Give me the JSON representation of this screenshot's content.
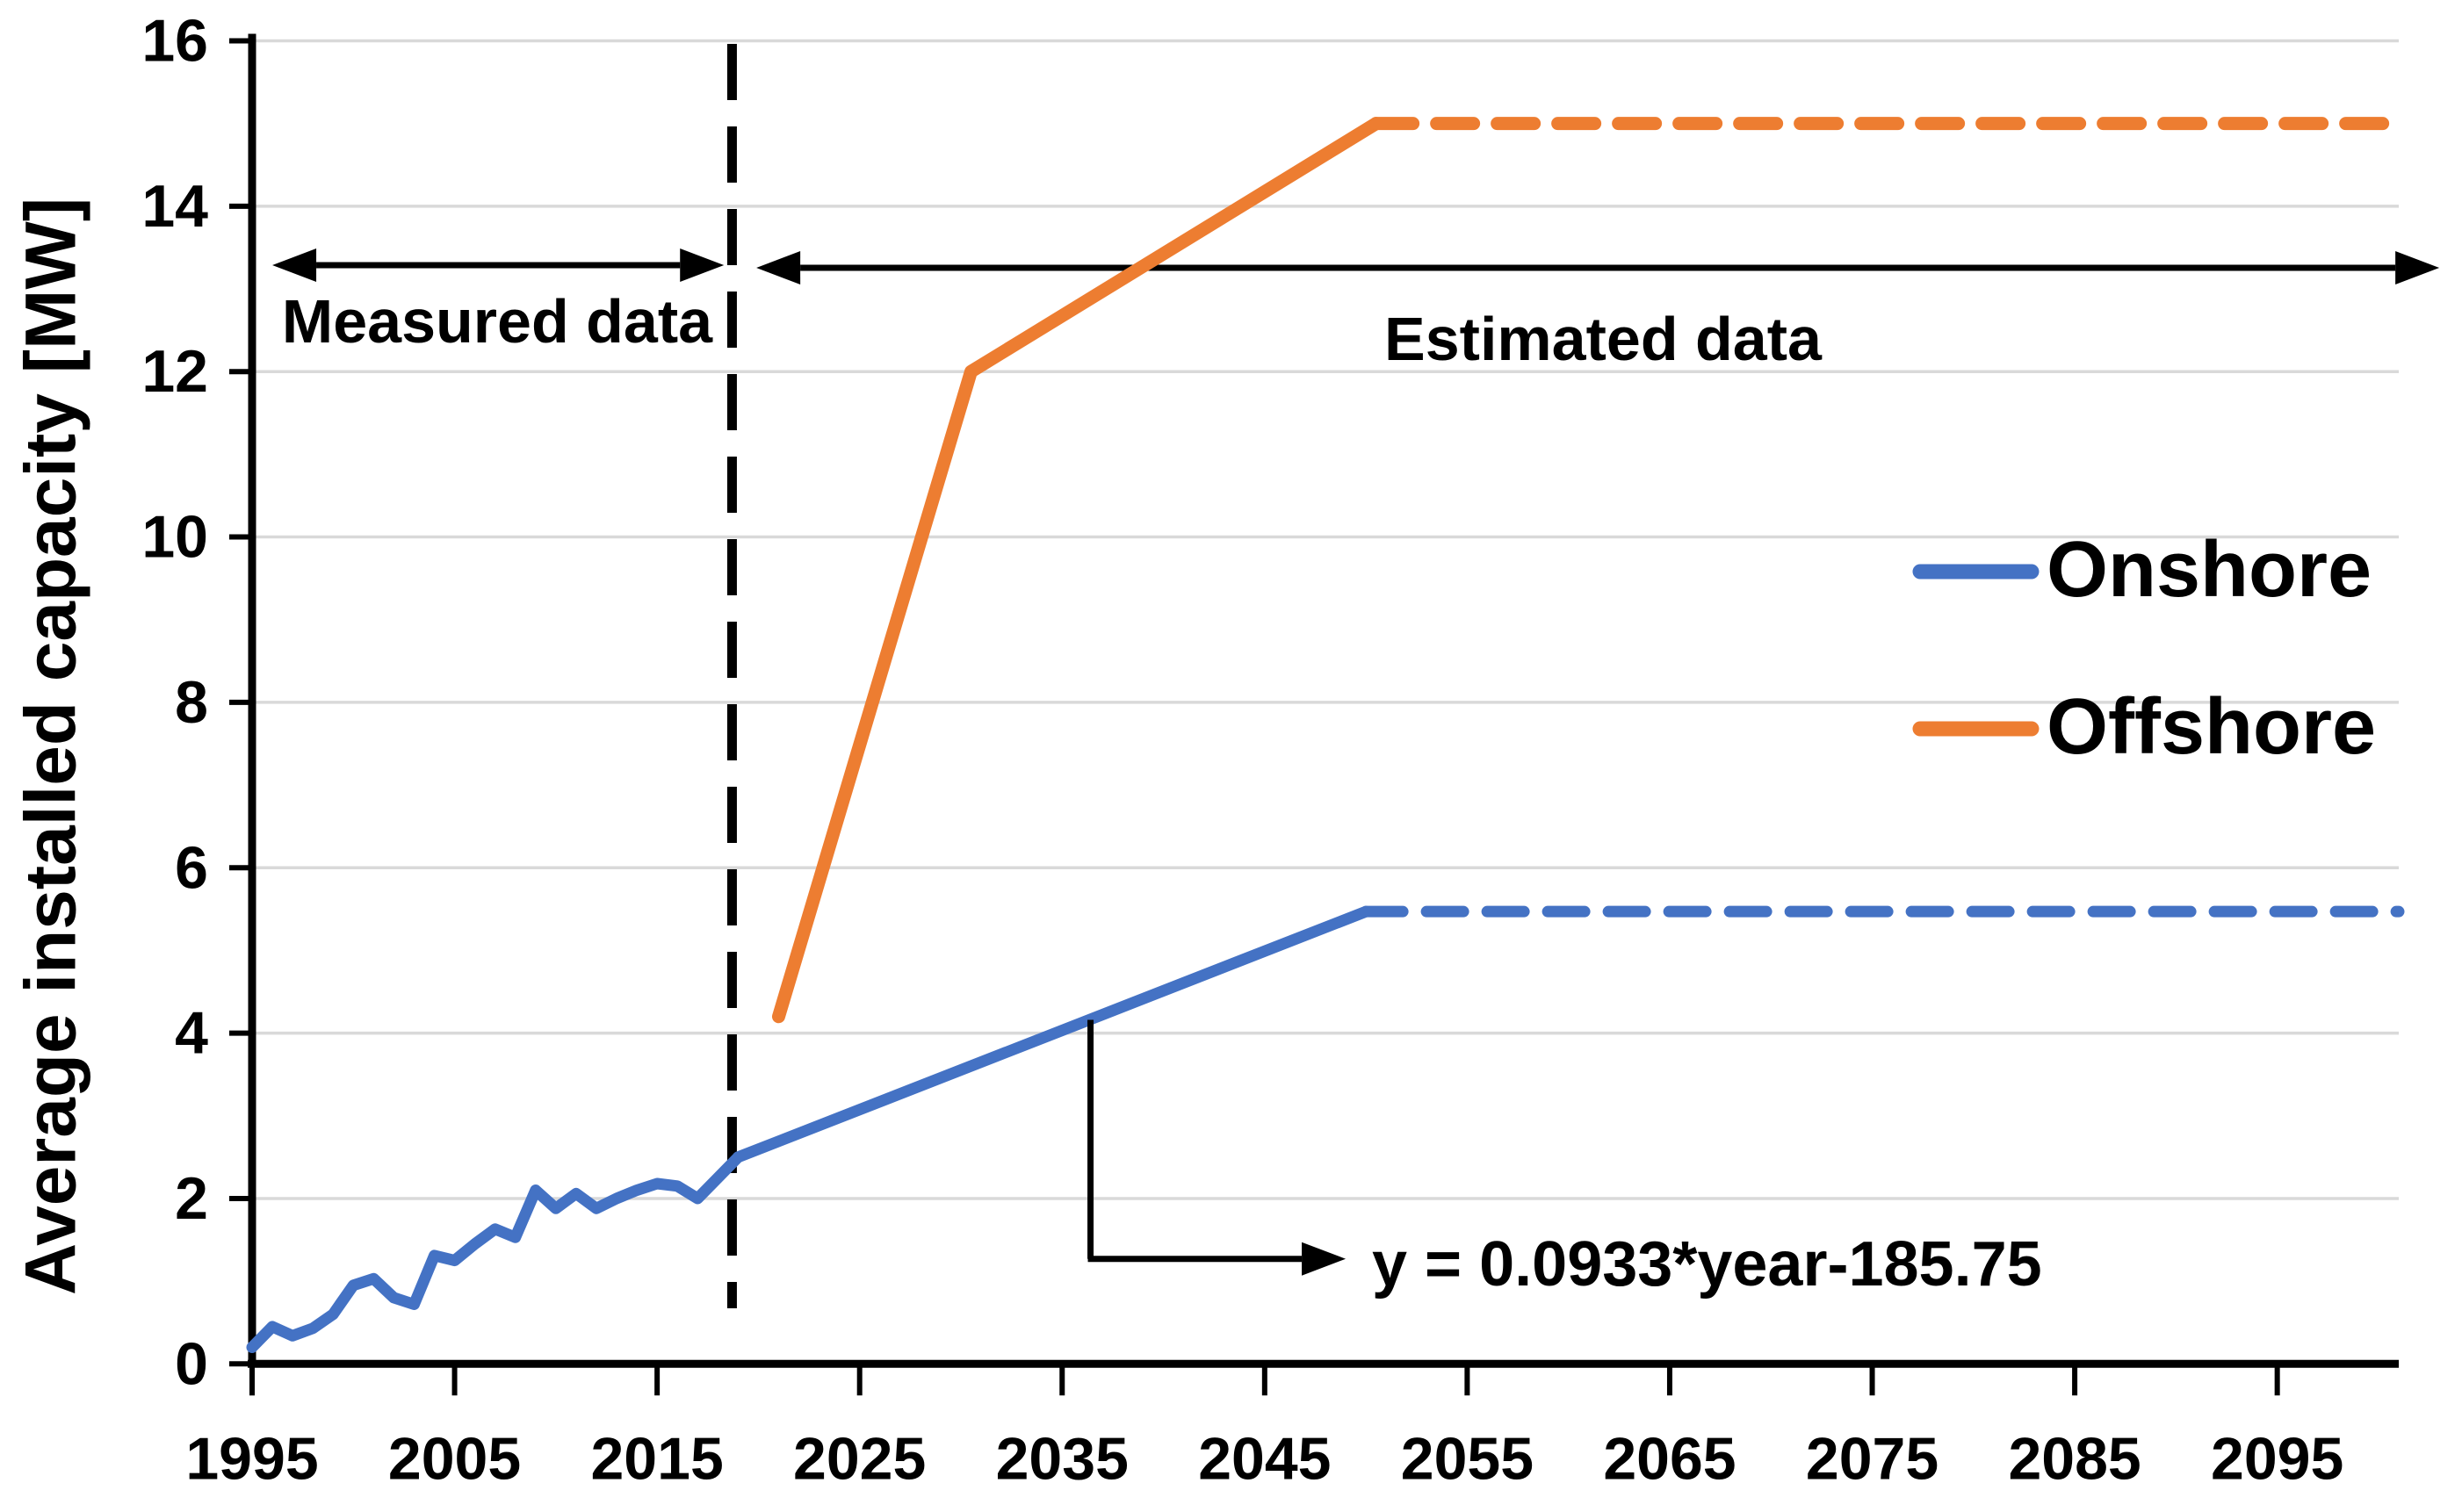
{
  "figure": {
    "background": "#ffffff",
    "y_axis_title": "Average installed capacity [MW]",
    "annotations": {
      "measured_label": "Measured data",
      "estimated_label": "Estimated data",
      "equation": "y = 0.0933*year-185.75"
    },
    "legend": [
      {
        "label": "Onshore",
        "color": "#4472C4"
      },
      {
        "label": "Offshore",
        "color": "#ED7D31"
      }
    ]
  },
  "chart_data": {
    "type": "line",
    "title": "",
    "xlabel": "",
    "ylabel": "Average installed capacity [MW]",
    "xlim": [
      1995,
      2101
    ],
    "ylim": [
      0,
      16
    ],
    "x_ticks": [
      1995,
      2005,
      2015,
      2025,
      2035,
      2045,
      2055,
      2065,
      2075,
      2085,
      2095
    ],
    "y_ticks": [
      0,
      2,
      4,
      6,
      8,
      10,
      12,
      14,
      16
    ],
    "grid": "horizontal",
    "gridline_color": "#D9D9D9",
    "legend_position": "right",
    "boundary_year": 2018.7,
    "measured_region": {
      "label": "Measured data",
      "span": [
        1996,
        2018.3
      ]
    },
    "estimated_region": {
      "label": "Estimated data",
      "span": [
        2019.9,
        2103
      ]
    },
    "onshore_trend_equation": "y = 0.0933*year-185.75",
    "series": [
      {
        "name": "Onshore measured",
        "color": "#4472C4",
        "style": "solid",
        "points": [
          [
            1995,
            0.2
          ],
          [
            1996,
            0.45
          ],
          [
            1997,
            0.34
          ],
          [
            1998,
            0.43
          ],
          [
            1999,
            0.6
          ],
          [
            2000,
            0.95
          ],
          [
            2001,
            1.03
          ],
          [
            2002,
            0.8
          ],
          [
            2003,
            0.72
          ],
          [
            2004,
            1.31
          ],
          [
            2005,
            1.25
          ],
          [
            2006,
            1.45
          ],
          [
            2007,
            1.63
          ],
          [
            2008,
            1.53
          ],
          [
            2009,
            2.1
          ],
          [
            2010,
            1.88
          ],
          [
            2011,
            2.06
          ],
          [
            2012,
            1.88
          ],
          [
            2013,
            2.0
          ],
          [
            2014,
            2.1
          ],
          [
            2015,
            2.18
          ],
          [
            2016,
            2.15
          ],
          [
            2017,
            2.0
          ],
          [
            2018,
            2.25
          ],
          [
            2019,
            2.5
          ]
        ]
      },
      {
        "name": "Onshore estimated (linear trend)",
        "color": "#4472C4",
        "style": "solid",
        "points": [
          [
            2019,
            2.5
          ],
          [
            2050,
            5.47
          ]
        ]
      },
      {
        "name": "Onshore estimated (constant)",
        "color": "#4472C4",
        "style": "dashed",
        "points": [
          [
            2050,
            5.47
          ],
          [
            2101,
            5.47
          ]
        ]
      },
      {
        "name": "Offshore estimated",
        "color": "#ED7D31",
        "style": "solid",
        "points": [
          [
            2021,
            4.2
          ],
          [
            2030.5,
            12.0
          ],
          [
            2050.5,
            15.0
          ]
        ]
      },
      {
        "name": "Offshore estimated (constant)",
        "color": "#ED7D31",
        "style": "dashed",
        "points": [
          [
            2050.5,
            15.0
          ],
          [
            2101,
            15.0
          ]
        ]
      }
    ]
  }
}
